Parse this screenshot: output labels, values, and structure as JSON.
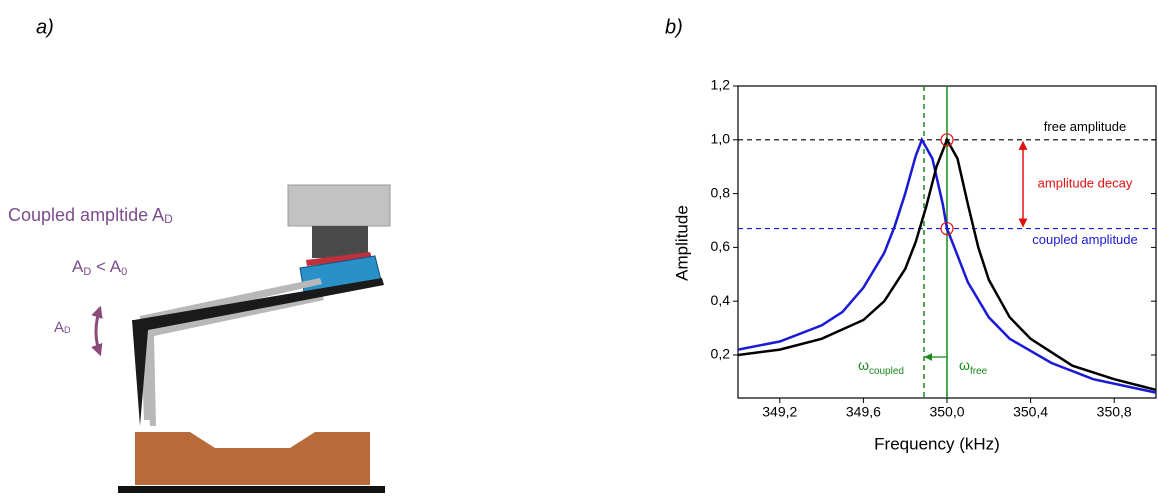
{
  "diagram": {
    "panel_label": "a)",
    "coupled_label": [
      "Coupled ampltide A",
      "D"
    ],
    "inequality": [
      "A",
      "D",
      " < A",
      "0"
    ],
    "amplitude_label": [
      "A",
      "D"
    ]
  },
  "chart_data": {
    "type": "line",
    "panel_label": "b)",
    "xlabel": "Frequency (kHz)",
    "ylabel": "Amplitude",
    "xlim": [
      349.0,
      351.0
    ],
    "ylim": [
      0.04,
      1.2
    ],
    "xticks": [
      {
        "value": 349.2,
        "label": "349,2"
      },
      {
        "value": 349.6,
        "label": "349,6"
      },
      {
        "value": 350.0,
        "label": "350,0"
      },
      {
        "value": 350.4,
        "label": "350,4"
      },
      {
        "value": 350.8,
        "label": "350,8"
      }
    ],
    "yticks": [
      {
        "value": 0.2,
        "label": "0,2"
      },
      {
        "value": 0.4,
        "label": "0,4"
      },
      {
        "value": 0.6,
        "label": "0,6"
      },
      {
        "value": 0.8,
        "label": "0,8"
      },
      {
        "value": 1.0,
        "label": "1,0"
      },
      {
        "value": 1.2,
        "label": "1,2"
      }
    ],
    "series": [
      {
        "color": "#1a1ad6",
        "x": [
          349.0,
          349.2,
          349.4,
          349.5,
          349.6,
          349.7,
          349.75,
          349.8,
          349.85,
          349.88,
          349.93,
          349.98,
          350.0,
          350.05,
          350.1,
          350.2,
          350.3,
          350.5,
          350.7,
          351.0
        ],
        "values": [
          0.22,
          0.25,
          0.31,
          0.36,
          0.45,
          0.58,
          0.68,
          0.8,
          0.94,
          1.0,
          0.93,
          0.76,
          0.67,
          0.57,
          0.47,
          0.34,
          0.26,
          0.17,
          0.11,
          0.06
        ]
      },
      {
        "color": "#000000",
        "x": [
          349.0,
          349.2,
          349.4,
          349.6,
          349.7,
          349.8,
          349.85,
          349.9,
          349.95,
          350.0,
          350.05,
          350.1,
          350.15,
          350.2,
          350.3,
          350.4,
          350.6,
          350.8,
          351.0
        ],
        "values": [
          0.2,
          0.22,
          0.26,
          0.33,
          0.4,
          0.52,
          0.62,
          0.75,
          0.9,
          1.0,
          0.93,
          0.76,
          0.6,
          0.48,
          0.34,
          0.26,
          0.16,
          0.11,
          0.07
        ]
      }
    ],
    "hlines": [
      {
        "value": 1.0,
        "color": "#000000",
        "label": "free amplitude"
      },
      {
        "value": 0.67,
        "color": "#1a1ad6",
        "label": "coupled amplitude"
      }
    ],
    "vlines": [
      {
        "value": 350.0,
        "color": "#1a8a1a",
        "dashed": false,
        "symbol": "ω",
        "sub": "free"
      },
      {
        "value": 349.89,
        "color": "#1a8a1a",
        "dashed": true,
        "symbol": "ω",
        "sub": "coupled"
      }
    ],
    "decay_label": "amplitude decay",
    "decay_color": "#e01010"
  }
}
